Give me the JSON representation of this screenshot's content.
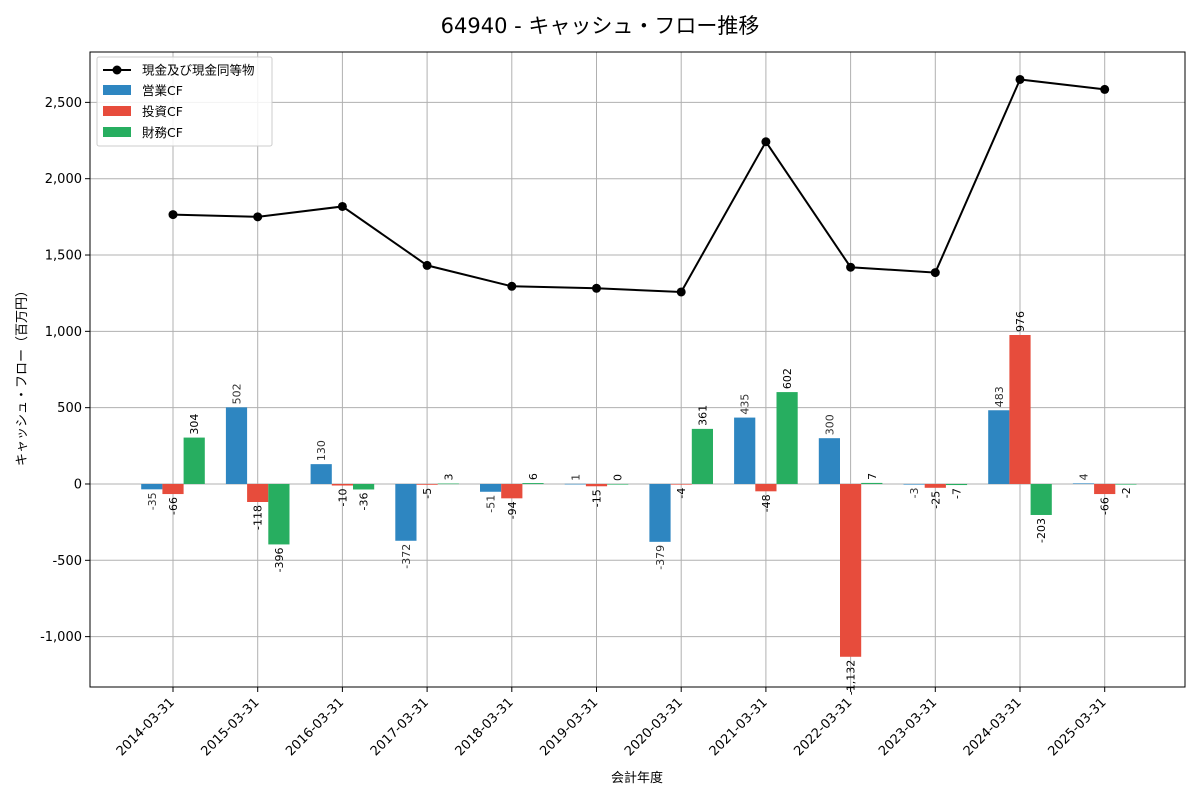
{
  "chart_data": {
    "type": "bar",
    "title": "64940 - キャッシュ・フロー推移",
    "xlabel": "会計年度",
    "ylabel": "キャッシュ・フロー（百万円）",
    "ylim": [
      -1330,
      2830
    ],
    "yticks": [
      -1000,
      -500,
      0,
      500,
      1000,
      1500,
      2000,
      2500
    ],
    "ytick_labels": [
      "-1,000",
      "-500",
      "0",
      "500",
      "1,000",
      "1,500",
      "2,000",
      "2,500"
    ],
    "grid": true,
    "legend_position": "top-left",
    "categories": [
      "2014-03-31",
      "2015-03-31",
      "2016-03-31",
      "2017-03-31",
      "2018-03-31",
      "2019-03-31",
      "2020-03-31",
      "2021-03-31",
      "2022-03-31",
      "2023-03-31",
      "2024-03-31",
      "2025-03-31"
    ],
    "line_series": {
      "name": "現金及び現金同等物",
      "color": "#000000",
      "values": [
        1765,
        1750,
        1818,
        1432,
        1295,
        1282,
        1258,
        2242,
        1420,
        1385,
        2650,
        2585
      ]
    },
    "series": [
      {
        "name": "営業CF",
        "color": "#2e86c1",
        "values": [
          -35,
          502,
          130,
          -372,
          -51,
          1,
          -379,
          435,
          300,
          -3,
          483,
          4
        ]
      },
      {
        "name": "投資CF",
        "color": "#e74c3c",
        "values": [
          -66,
          -118,
          -10,
          -5,
          -94,
          -15,
          -4,
          -48,
          -1132,
          -25,
          976,
          -66
        ]
      },
      {
        "name": "財務CF",
        "color": "#27ae60",
        "values": [
          304,
          -396,
          -36,
          3,
          6,
          0,
          361,
          602,
          7,
          -7,
          -203,
          -2
        ]
      }
    ],
    "bar_labels": [
      [
        "-35",
        "502",
        "130",
        "-372",
        "-51",
        "1",
        "-379",
        "435",
        "300",
        "-3",
        "483",
        "4"
      ],
      [
        "-66",
        "-118",
        "-10",
        "-5",
        "-94",
        "-15",
        "-4",
        "-48",
        "-1,132",
        "-25",
        "976",
        "-66"
      ],
      [
        "304",
        "-396",
        "-36",
        "3",
        "6",
        "0",
        "361",
        "602",
        "7",
        "-7",
        "-203",
        "-2"
      ]
    ]
  }
}
